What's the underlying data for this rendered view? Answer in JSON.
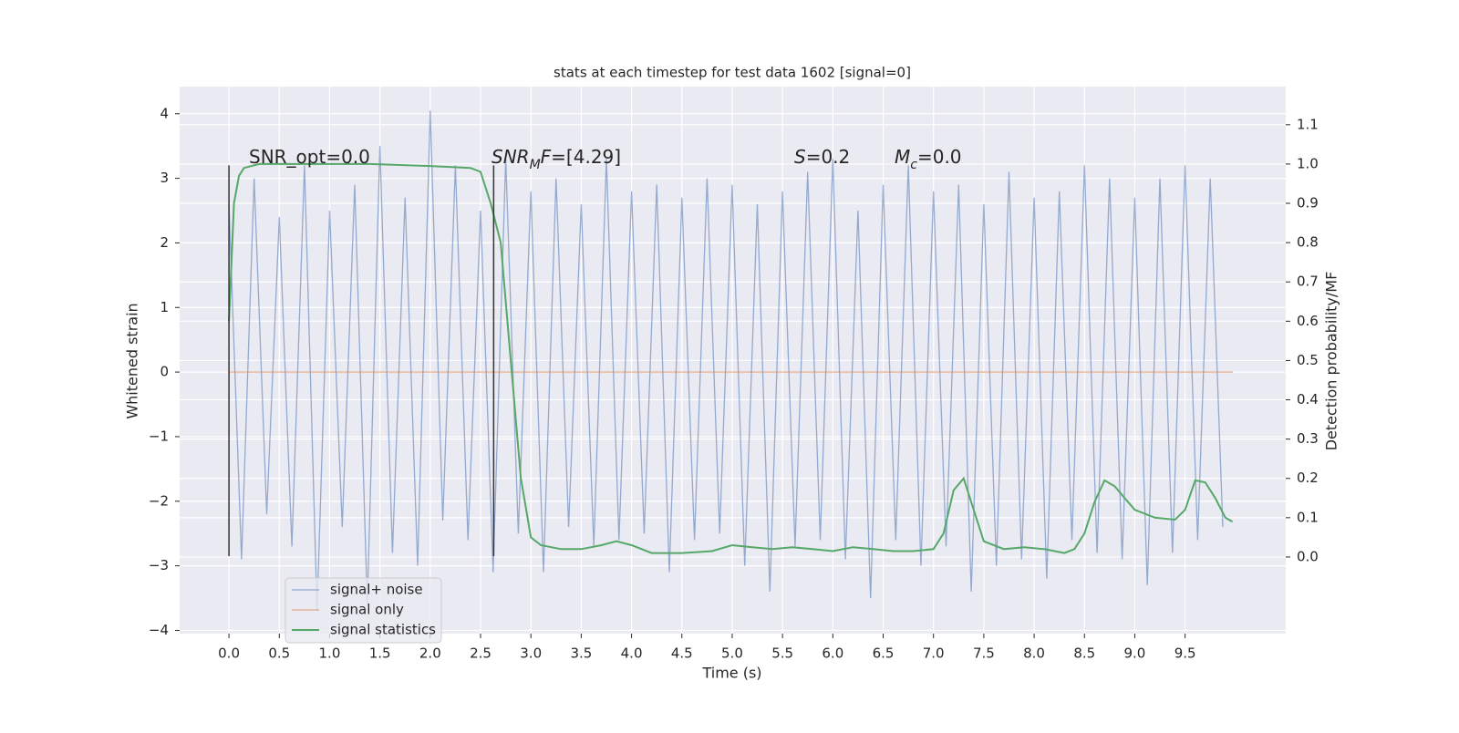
{
  "chart_data": {
    "type": "line",
    "title": "stats at each timestep for test data 1602 [signal=0]",
    "xlabel": "Time (s)",
    "ylabel": "Whitened strain",
    "y2label": "Detection probability/MF",
    "xlim": [
      -0.49,
      10.5
    ],
    "ylim": [
      -4.05,
      4.42
    ],
    "y2lim": [
      -0.195,
      1.197
    ],
    "xticks": [
      {
        "value": 0,
        "label": "0.0"
      },
      0.5,
      {
        "value": 1,
        "label": "1.0"
      },
      1.5,
      {
        "value": 2,
        "label": "2.0"
      },
      2.5,
      {
        "value": 3,
        "label": "3.0"
      },
      3.5,
      {
        "value": 4,
        "label": "4.0"
      },
      4.5,
      {
        "value": 5,
        "label": "5.0"
      },
      5.5,
      {
        "value": 6,
        "label": "6.0"
      },
      6.5,
      {
        "value": 7,
        "label": "7.0"
      },
      7.5,
      {
        "value": 8,
        "label": "8.0"
      },
      8.5,
      {
        "value": 9,
        "label": "9.0"
      },
      9.5
    ],
    "yticks": [
      {
        "value": -4,
        "label": "−4"
      },
      {
        "value": -3,
        "label": "−3"
      },
      {
        "value": -2,
        "label": "−2"
      },
      {
        "value": -1,
        "label": "−1"
      },
      0,
      1,
      2,
      3,
      4
    ],
    "y2ticks": [
      {
        "value": 0,
        "label": "0.0"
      },
      0.1,
      0.2,
      0.3,
      0.4,
      0.5,
      0.6,
      0.7,
      0.8,
      0.9,
      {
        "value": 1,
        "label": "1.0"
      },
      1.1
    ],
    "grid": true,
    "legend": "lower left",
    "series": [
      {
        "name": "signal+ noise",
        "color": "#4c72b0",
        "x": [
          0,
          0.125,
          0.25,
          0.375,
          0.5,
          0.625,
          0.75,
          0.875,
          1,
          1.125,
          1.25,
          1.375,
          1.5,
          1.625,
          1.75,
          1.875,
          2,
          2.125,
          2.25,
          2.375,
          2.5,
          2.625,
          2.75,
          2.875,
          3,
          3.125,
          3.25,
          3.375,
          3.5,
          3.625,
          3.75,
          3.875,
          4,
          4.125,
          4.25,
          4.375,
          4.5,
          4.625,
          4.75,
          4.875,
          5,
          5.125,
          5.25,
          5.375,
          5.5,
          5.625,
          5.75,
          5.875,
          6,
          6.125,
          6.25,
          6.375,
          6.5,
          6.625,
          6.75,
          6.875,
          7,
          7.125,
          7.25,
          7.375,
          7.5,
          7.625,
          7.75,
          7.875,
          8,
          8.125,
          8.25,
          8.375,
          8.5,
          8.625,
          8.75,
          8.875,
          9,
          9.125,
          9.25,
          9.375,
          9.5,
          9.625,
          9.75,
          9.875
        ],
        "values": [
          2.6,
          -2.9,
          3.0,
          -2.2,
          2.4,
          -2.7,
          3.2,
          -3.7,
          2.5,
          -2.4,
          2.9,
          -3.6,
          3.5,
          -2.8,
          2.7,
          -3.0,
          4.05,
          -2.3,
          3.2,
          -2.6,
          2.5,
          -3.1,
          3.3,
          -2.5,
          2.8,
          -3.1,
          3.0,
          -2.4,
          2.6,
          -2.7,
          3.3,
          -2.6,
          2.8,
          -2.5,
          2.9,
          -3.1,
          2.7,
          -2.6,
          3.0,
          -2.5,
          2.9,
          -3.0,
          2.6,
          -3.4,
          2.8,
          -2.7,
          3.1,
          -2.6,
          3.3,
          -2.9,
          2.5,
          -3.5,
          2.9,
          -2.6,
          3.2,
          -3.0,
          2.8,
          -2.7,
          2.9,
          -3.4,
          2.6,
          -3.0,
          3.1,
          -2.9,
          2.7,
          -3.2,
          2.8,
          -2.6,
          3.2,
          -2.8,
          3.0,
          -2.9,
          2.7,
          -3.3,
          3.0,
          -2.8,
          3.2,
          -2.6,
          3.0,
          -2.4
        ]
      },
      {
        "name": "signal only",
        "color": "#dd8452",
        "x": [
          0,
          9.975
        ],
        "values": [
          0,
          0
        ]
      },
      {
        "name": "signal statistics",
        "color": "#55a868",
        "axis": "y2",
        "x": [
          0,
          0.05,
          0.1,
          0.15,
          0.3,
          1.0,
          1.4,
          2.0,
          2.4,
          2.5,
          2.6,
          2.7,
          2.8,
          2.9,
          3.0,
          3.1,
          3.3,
          3.5,
          3.7,
          3.85,
          4.0,
          4.2,
          4.5,
          4.8,
          5.0,
          5.2,
          5.4,
          5.6,
          5.8,
          6.0,
          6.2,
          6.4,
          6.6,
          6.8,
          7.0,
          7.1,
          7.2,
          7.3,
          7.4,
          7.5,
          7.7,
          7.9,
          8.1,
          8.3,
          8.4,
          8.5,
          8.6,
          8.7,
          8.8,
          8.9,
          9.0,
          9.2,
          9.4,
          9.5,
          9.6,
          9.7,
          9.8,
          9.9,
          9.97
        ],
        "values": [
          0.6,
          0.9,
          0.97,
          0.99,
          1.0,
          1.0,
          1.0,
          0.995,
          0.99,
          0.98,
          0.9,
          0.8,
          0.5,
          0.2,
          0.05,
          0.03,
          0.02,
          0.02,
          0.03,
          0.04,
          0.03,
          0.01,
          0.01,
          0.015,
          0.03,
          0.025,
          0.02,
          0.025,
          0.02,
          0.015,
          0.025,
          0.02,
          0.015,
          0.015,
          0.02,
          0.06,
          0.17,
          0.2,
          0.12,
          0.04,
          0.02,
          0.025,
          0.02,
          0.01,
          0.02,
          0.06,
          0.14,
          0.195,
          0.18,
          0.15,
          0.12,
          0.1,
          0.095,
          0.12,
          0.195,
          0.19,
          0.15,
          0.1,
          0.09
        ]
      }
    ],
    "vlines": [
      {
        "x": 0,
        "ymin": -2.85,
        "ymax": 3.2,
        "color": "#333333"
      },
      {
        "x": 2.63,
        "ymin": -2.85,
        "ymax": 3.2,
        "color": "#333333"
      }
    ],
    "annotations": [
      [
        {
          "text": "SNR_opt=0.0"
        }
      ],
      [
        {
          "text": "SNR",
          "italic": true
        },
        {
          "text": "M",
          "italic": true,
          "sub": true
        },
        {
          "text": "F",
          "italic": true
        },
        {
          "text": "=[4.29]"
        }
      ],
      [
        {
          "text": "S",
          "italic": true
        },
        {
          "text": "=0.2"
        }
      ],
      [
        {
          "text": "M",
          "italic": true
        },
        {
          "text": "c",
          "italic": true,
          "sub": true
        },
        {
          "text": "=0.0"
        }
      ]
    ]
  }
}
